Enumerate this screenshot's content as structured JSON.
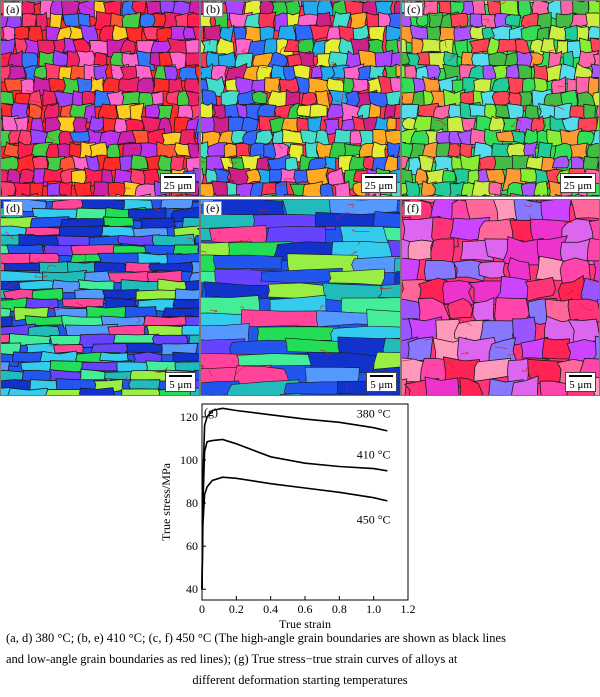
{
  "panels": [
    {
      "label": "(a)",
      "scale": "25 μm"
    },
    {
      "label": "(b)",
      "scale": "25 μm"
    },
    {
      "label": "(c)",
      "scale": "25 μm"
    },
    {
      "label": "(d)",
      "scale": "5 μm"
    },
    {
      "label": "(e)",
      "scale": "5 μm"
    },
    {
      "label": "(f)",
      "scale": "5 μm"
    }
  ],
  "chart_data": {
    "type": "line",
    "panel_label": "(g)",
    "xlabel": "True strain",
    "ylabel": "True stress/MPa",
    "xlim": [
      0,
      1.2
    ],
    "ylim": [
      35,
      126
    ],
    "xticks": [
      "0",
      "0.2",
      "0.4",
      "0.6",
      "0.8",
      "1.0",
      "1.2"
    ],
    "yticks": [
      "40",
      "60",
      "80",
      "100",
      "120"
    ],
    "grid": false,
    "series": [
      {
        "name": "380 °C",
        "x": [
          0,
          0.005,
          0.015,
          0.03,
          0.06,
          0.12,
          0.2,
          0.4,
          0.6,
          0.8,
          1.0,
          1.08
        ],
        "y": [
          40,
          90,
          116,
          120,
          123,
          124,
          123,
          121,
          119,
          117.5,
          115,
          113.5
        ]
      },
      {
        "name": "410 °C",
        "x": [
          0,
          0.005,
          0.015,
          0.03,
          0.06,
          0.12,
          0.2,
          0.4,
          0.6,
          0.8,
          1.0,
          1.08
        ],
        "y": [
          40,
          80,
          104,
          108.5,
          109,
          109.5,
          107.5,
          101.5,
          98.5,
          97,
          96,
          95
        ]
      },
      {
        "name": "450 °C",
        "x": [
          0,
          0.005,
          0.015,
          0.03,
          0.06,
          0.12,
          0.2,
          0.4,
          0.6,
          0.8,
          1.0,
          1.08
        ],
        "y": [
          40,
          70,
          84,
          87.5,
          90.5,
          92,
          91.5,
          89,
          87,
          85,
          82.5,
          81
        ]
      }
    ]
  },
  "caption": {
    "line1": "(a, d) 380 °C; (b, e) 410 °C; (c, f) 450 °C (The high-angle grain boundaries are shown as black lines",
    "line2": "and low-angle grain boundaries as red lines); (g) True stress−true strain curves of alloys at",
    "line3": "different deformation starting temperatures"
  }
}
